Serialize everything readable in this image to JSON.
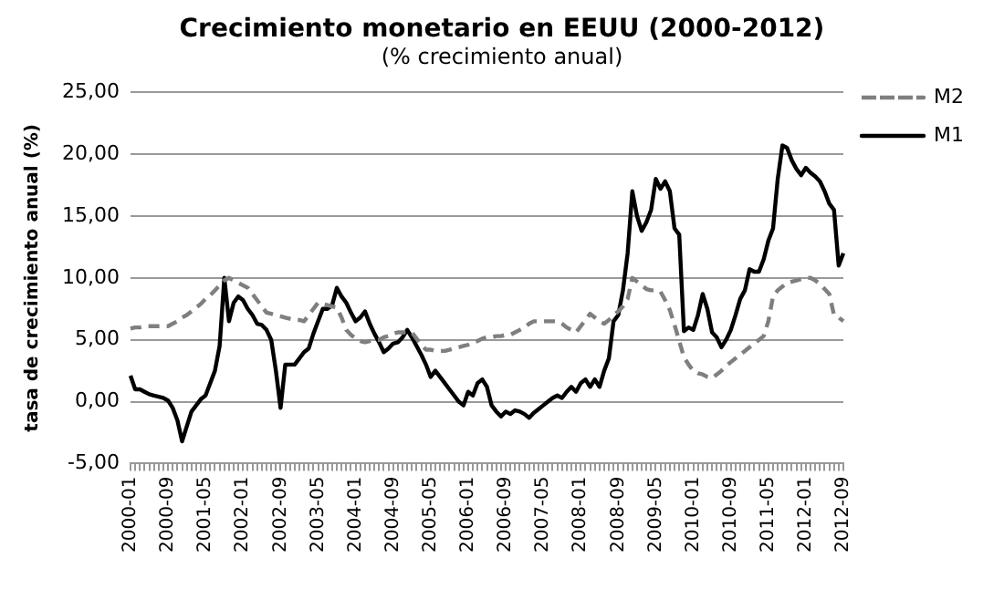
{
  "chart_data": {
    "type": "line",
    "title": "Crecimiento monetario en EEUU (2000-2012)",
    "subtitle": "(% crecimiento anual)",
    "ylabel": "tasa de crecimiento anual (%)",
    "categories": [
      "2000-01",
      null,
      null,
      null,
      null,
      null,
      null,
      null,
      "2000-09",
      null,
      null,
      null,
      null,
      null,
      null,
      null,
      "2001-05",
      null,
      null,
      null,
      null,
      null,
      null,
      null,
      "2002-01",
      null,
      null,
      null,
      null,
      null,
      null,
      null,
      "2002-09",
      null,
      null,
      null,
      null,
      null,
      null,
      null,
      "2003-05",
      null,
      null,
      null,
      null,
      null,
      null,
      null,
      "2004-01",
      null,
      null,
      null,
      null,
      null,
      null,
      null,
      "2004-09",
      null,
      null,
      null,
      null,
      null,
      null,
      null,
      "2005-05",
      null,
      null,
      null,
      null,
      null,
      null,
      null,
      "2006-01",
      null,
      null,
      null,
      null,
      null,
      null,
      null,
      "2006-09",
      null,
      null,
      null,
      null,
      null,
      null,
      null,
      "2007-05",
      null,
      null,
      null,
      null,
      null,
      null,
      null,
      "2008-01",
      null,
      null,
      null,
      null,
      null,
      null,
      null,
      "2008-09",
      null,
      null,
      null,
      null,
      null,
      null,
      null,
      "2009-05",
      null,
      null,
      null,
      null,
      null,
      null,
      null,
      "2010-01",
      null,
      null,
      null,
      null,
      null,
      null,
      null,
      "2010-09",
      null,
      null,
      null,
      null,
      null,
      null,
      null,
      "2011-05",
      null,
      null,
      null,
      null,
      null,
      null,
      null,
      "2012-01",
      null,
      null,
      null,
      null,
      null,
      null,
      null,
      "2012-09"
    ],
    "series": [
      {
        "name": "M2",
        "color": "#7f7f7f",
        "line_style": "dashed",
        "values": [
          5.9,
          6.0,
          6.0,
          6.1,
          6.1,
          6.1,
          6.1,
          6.1,
          6.1,
          6.3,
          6.5,
          6.8,
          7.0,
          7.3,
          7.6,
          7.9,
          8.3,
          8.6,
          9.0,
          9.4,
          9.8,
          10.0,
          9.8,
          9.6,
          9.4,
          9.2,
          8.7,
          8.2,
          7.7,
          7.2,
          7.1,
          7.0,
          6.9,
          6.8,
          6.7,
          6.6,
          6.6,
          6.5,
          7.0,
          7.5,
          8.0,
          7.9,
          7.8,
          7.7,
          7.6,
          6.8,
          5.8,
          5.4,
          5.1,
          4.9,
          4.8,
          4.9,
          5.0,
          5.0,
          5.2,
          5.3,
          5.5,
          5.6,
          5.6,
          5.6,
          5.6,
          5.1,
          4.6,
          4.2,
          4.2,
          4.1,
          4.1,
          4.1,
          4.2,
          4.3,
          4.4,
          4.5,
          4.6,
          4.8,
          4.9,
          5.1,
          5.2,
          5.2,
          5.3,
          5.3,
          5.4,
          5.4,
          5.6,
          5.8,
          6.0,
          6.3,
          6.5,
          6.5,
          6.5,
          6.5,
          6.5,
          6.5,
          6.3,
          6.0,
          5.8,
          5.6,
          6.1,
          6.6,
          7.1,
          6.8,
          6.5,
          6.3,
          6.6,
          7.0,
          7.3,
          7.7,
          8.3,
          10.0,
          9.7,
          9.4,
          9.1,
          9.0,
          9.0,
          8.9,
          8.2,
          7.4,
          6.2,
          4.9,
          3.6,
          3.0,
          2.5,
          2.3,
          2.2,
          2.0,
          1.9,
          2.2,
          2.5,
          2.9,
          3.2,
          3.5,
          3.8,
          4.1,
          4.4,
          4.7,
          5.0,
          5.3,
          6.5,
          8.5,
          9.0,
          9.3,
          9.6,
          9.7,
          9.8,
          9.9,
          10.0,
          10.0,
          9.8,
          9.5,
          9.1,
          8.7,
          7.0,
          6.8,
          6.5
        ]
      },
      {
        "name": "M1",
        "color": "#000000",
        "line_style": "solid",
        "values": [
          2.1,
          1.0,
          1.0,
          0.8,
          0.6,
          0.5,
          0.4,
          0.3,
          0.1,
          -0.5,
          -1.5,
          -3.2,
          -2.0,
          -0.8,
          -0.3,
          0.2,
          0.5,
          1.5,
          2.5,
          4.5,
          10.0,
          6.5,
          8.0,
          8.5,
          8.2,
          7.5,
          7.0,
          6.3,
          6.2,
          5.8,
          5.0,
          2.5,
          -0.5,
          3.0,
          3.0,
          3.0,
          3.5,
          4.0,
          4.3,
          5.5,
          6.5,
          7.5,
          7.5,
          7.8,
          9.2,
          8.5,
          8.0,
          7.2,
          6.5,
          6.8,
          7.3,
          6.3,
          5.5,
          4.8,
          4.0,
          4.3,
          4.7,
          4.8,
          5.2,
          5.8,
          5.2,
          4.5,
          3.8,
          3.0,
          2.0,
          2.5,
          2.0,
          1.5,
          1.0,
          0.5,
          0.0,
          -0.3,
          0.8,
          0.5,
          1.5,
          1.8,
          1.2,
          -0.3,
          -0.8,
          -1.2,
          -0.8,
          -1.0,
          -0.7,
          -0.8,
          -1.0,
          -1.3,
          -0.9,
          -0.6,
          -0.3,
          0.0,
          0.3,
          0.5,
          0.3,
          0.8,
          1.2,
          0.8,
          1.5,
          1.8,
          1.2,
          1.8,
          1.2,
          2.5,
          3.5,
          6.5,
          7.0,
          9.0,
          12.0,
          17.0,
          15.0,
          13.8,
          14.5,
          15.5,
          18.0,
          17.2,
          17.8,
          17.0,
          14.0,
          13.5,
          5.7,
          6.0,
          5.8,
          7.0,
          8.7,
          7.5,
          5.6,
          5.2,
          4.4,
          5.0,
          5.8,
          7.0,
          8.3,
          9.0,
          10.7,
          10.5,
          10.5,
          11.5,
          13.0,
          14.0,
          18.0,
          20.7,
          20.5,
          19.5,
          18.8,
          18.3,
          18.9,
          18.5,
          18.2,
          17.8,
          17.0,
          16.0,
          15.5,
          11.0,
          12.0
        ]
      }
    ],
    "ylim": [
      -5,
      25
    ],
    "yticks": [
      {
        "value": -5,
        "label": "-5,00"
      },
      {
        "value": 0,
        "label": "0,00"
      },
      {
        "value": 5,
        "label": "5,00"
      },
      {
        "value": 10,
        "label": "10,00"
      },
      {
        "value": 15,
        "label": "15,00"
      },
      {
        "value": 20,
        "label": "20,00"
      },
      {
        "value": 25,
        "label": "25,00"
      }
    ],
    "grid": "y",
    "legend": "top right",
    "marker": "none"
  }
}
